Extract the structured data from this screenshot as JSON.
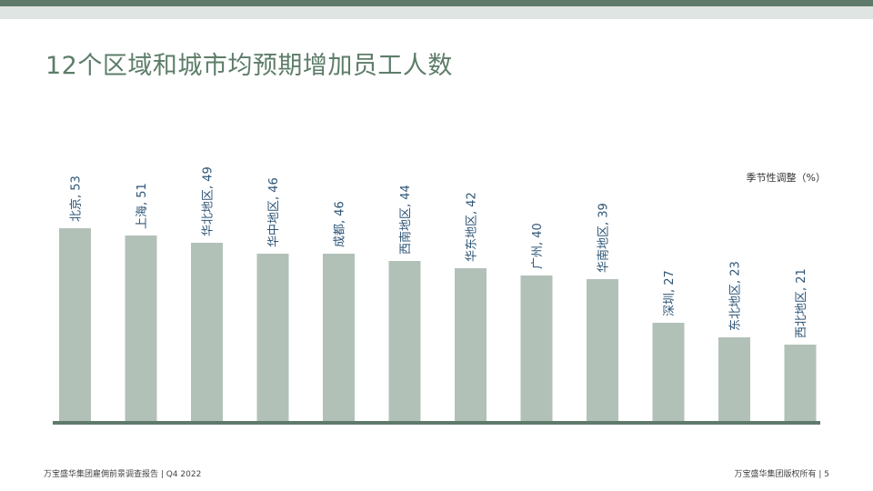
{
  "header": {
    "title": "12个区域和城市均预期增加员工人数"
  },
  "chart_data": {
    "type": "bar",
    "title": "12个区域和城市均预期增加员工人数",
    "unit_note": "季节性调整（%）",
    "categories": [
      "北京",
      "上海",
      "华北地区",
      "华中地区",
      "成都",
      "西南地区",
      "华东地区",
      "广州",
      "华南地区",
      "深圳",
      "东北地区",
      "西北地区"
    ],
    "values": [
      53,
      51,
      49,
      46,
      46,
      44,
      42,
      40,
      39,
      27,
      23,
      21
    ],
    "data_labels": [
      "北京, 53",
      "上海, 51",
      "华北地区, 49",
      "华中地区, 46",
      "成都, 46",
      "西南地区, 44",
      "华东地区, 42",
      "广州, 40",
      "华南地区, 39",
      "深圳, 27",
      "东北地区, 23",
      "西北地区, 21"
    ],
    "ylim": [
      0,
      56
    ],
    "grid": false,
    "colors": {
      "bar": "#b2c1b8",
      "baseline": "#5f7a6b",
      "label": "#2e5576"
    }
  },
  "footer": {
    "left": "万宝盛华集团雇佣前景调查报告 |  Q4 2022",
    "right": "万宝盛华集团版权所有 |  5"
  },
  "theme": {
    "accent": "#5f7a6b",
    "band_light": "#dfe5e2"
  }
}
